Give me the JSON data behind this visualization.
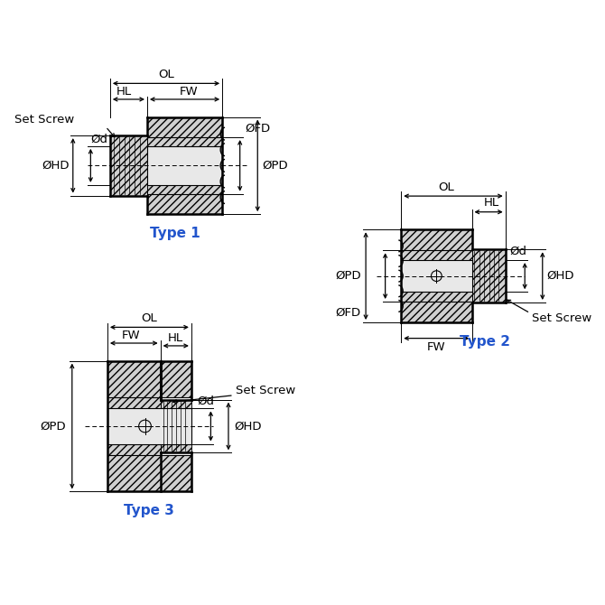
{
  "bg_color": "#ffffff",
  "line_color": "#000000",
  "fill_light": "#d0d0d0",
  "fill_bore": "#e8e8e8",
  "type_color": "#2255cc",
  "lw_main": 1.8,
  "lw_dim": 0.9,
  "lw_hatch": 0.5,
  "fs_label": 9.5,
  "fs_type": 11,
  "labels": {
    "OL": "OL",
    "HL": "HL",
    "FW": "FW",
    "OFD": "ØFD",
    "OHD": "ØHD",
    "Od": "Ød",
    "OPD": "ØPD",
    "Set_Screw": "Set Screw"
  },
  "type1_label": "Type 1",
  "type2_label": "Type 2",
  "type3_label": "Type 3"
}
